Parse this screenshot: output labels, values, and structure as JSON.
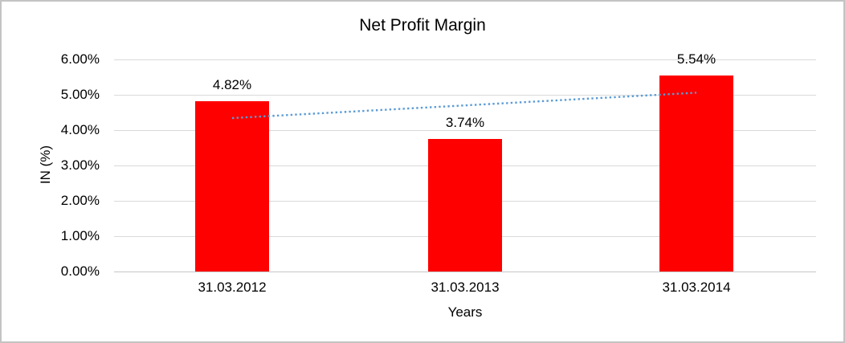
{
  "chart_data": {
    "type": "bar",
    "title": "Net Profit Margin",
    "xlabel": "Years",
    "ylabel": "IN (%)",
    "categories": [
      "31.03.2012",
      "31.03.2013",
      "31.03.2014"
    ],
    "series": [
      {
        "name": "Net Profit Margin",
        "values": [
          4.82,
          3.74,
          5.54
        ],
        "value_labels": [
          "4.82%",
          "3.74%",
          "5.54%"
        ],
        "color": "#ff0000"
      }
    ],
    "ylim": [
      0,
      6
    ],
    "ytick_step": 1,
    "ytick_labels": [
      "0.00%",
      "1.00%",
      "2.00%",
      "3.00%",
      "4.00%",
      "5.00%",
      "6.00%"
    ],
    "grid": true,
    "legend": false,
    "trendline": {
      "type": "linear",
      "style": "dotted",
      "color": "#5b9bd5",
      "values": [
        4.34,
        4.7,
        5.06
      ]
    },
    "colors": {
      "bar": "#ff0000",
      "gridline": "#d9d9d9",
      "axis_line": "#c6c6c6",
      "text": "#000000",
      "trendline": "#5b9bd5",
      "frame_border": "#c3c3c3",
      "background": "#ffffff"
    }
  }
}
